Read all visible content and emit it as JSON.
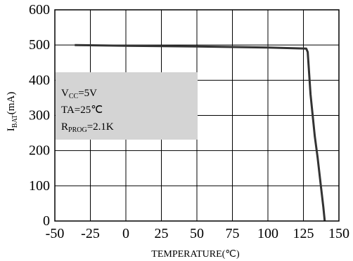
{
  "chart_data": {
    "type": "line",
    "xlabel": "TEMPERATURE(℃)",
    "ylabel_main": "I",
    "ylabel_sub": "BAT",
    "ylabel_unit": "(mA)",
    "xlim": [
      -50,
      150
    ],
    "ylim": [
      0,
      600
    ],
    "x_ticks": [
      -50,
      -25,
      0,
      25,
      50,
      75,
      100,
      125,
      150
    ],
    "y_ticks": [
      0,
      100,
      200,
      300,
      400,
      500,
      600
    ],
    "grid": true,
    "series": [
      {
        "x": [
          -36,
          0,
          50,
          100,
          127,
          128,
          130,
          133,
          135,
          137,
          139,
          140
        ],
        "y": [
          500,
          498,
          496,
          493,
          490,
          480,
          360,
          240,
          180,
          110,
          40,
          0
        ]
      }
    ],
    "annotation": {
      "lines": [
        {
          "main": "V",
          "sub": "CC",
          "rest": "=5V"
        },
        {
          "main": "TA=25℃",
          "sub": "",
          "rest": ""
        },
        {
          "main": "R",
          "sub": "PROG",
          "rest": "=2.1K"
        }
      ],
      "box_color": "#d4d4d4"
    },
    "colors": {
      "line": "#333333",
      "grid": "#000000"
    }
  }
}
